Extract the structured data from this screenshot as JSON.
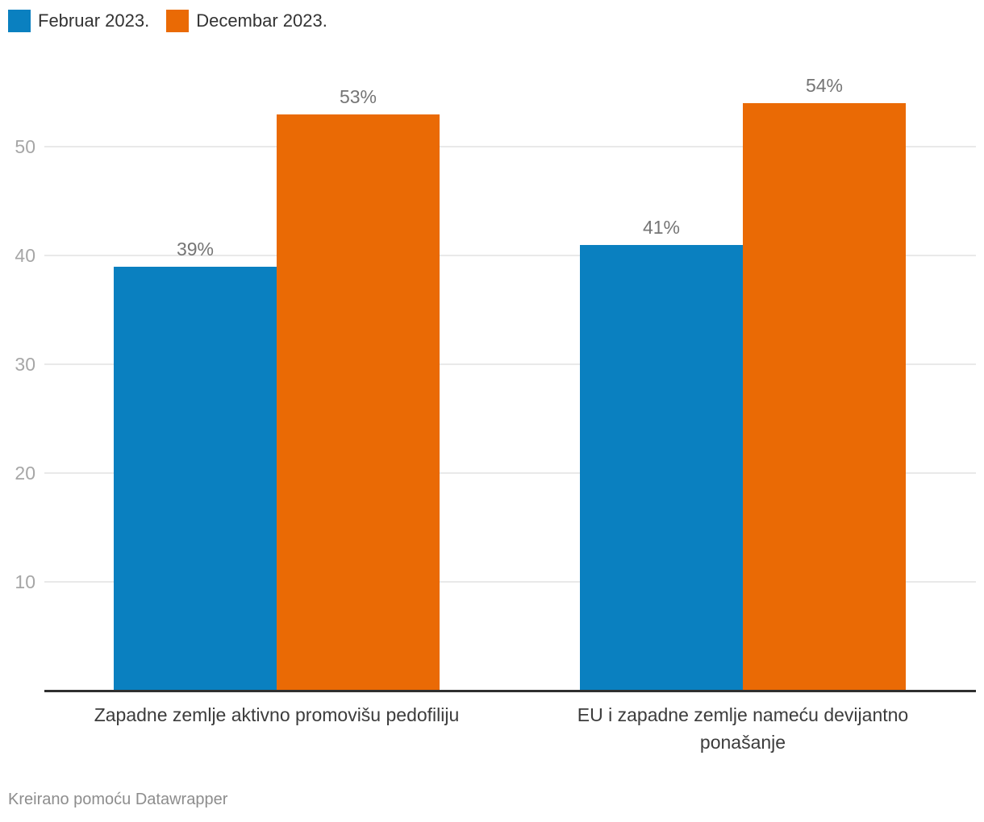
{
  "legend": {
    "items": [
      {
        "label": "Februar 2023.",
        "color": "#0a80c0"
      },
      {
        "label": "Decembar 2023.",
        "color": "#ea6a05"
      }
    ]
  },
  "footer": {
    "text": "Kreirano pomoću Datawrapper"
  },
  "chart_data": {
    "type": "bar",
    "title": "",
    "categories": [
      "Zapadne zemlje aktivno promovišu pedofiliju",
      "EU i zapadne zemlje nameću devijantno ponašanje"
    ],
    "series": [
      {
        "name": "Februar 2023.",
        "color": "#0a80c0",
        "values": [
          39,
          41
        ],
        "value_labels": [
          "39%",
          "41%"
        ]
      },
      {
        "name": "Decembar 2023.",
        "color": "#ea6a05",
        "values": [
          53,
          54
        ],
        "value_labels": [
          "53%",
          "54%"
        ]
      }
    ],
    "unit": "%",
    "ylim": [
      0,
      57
    ],
    "yticks": [
      10,
      20,
      30,
      40,
      50
    ],
    "grid": true,
    "legend_position": "top-left",
    "value_labels": true
  }
}
